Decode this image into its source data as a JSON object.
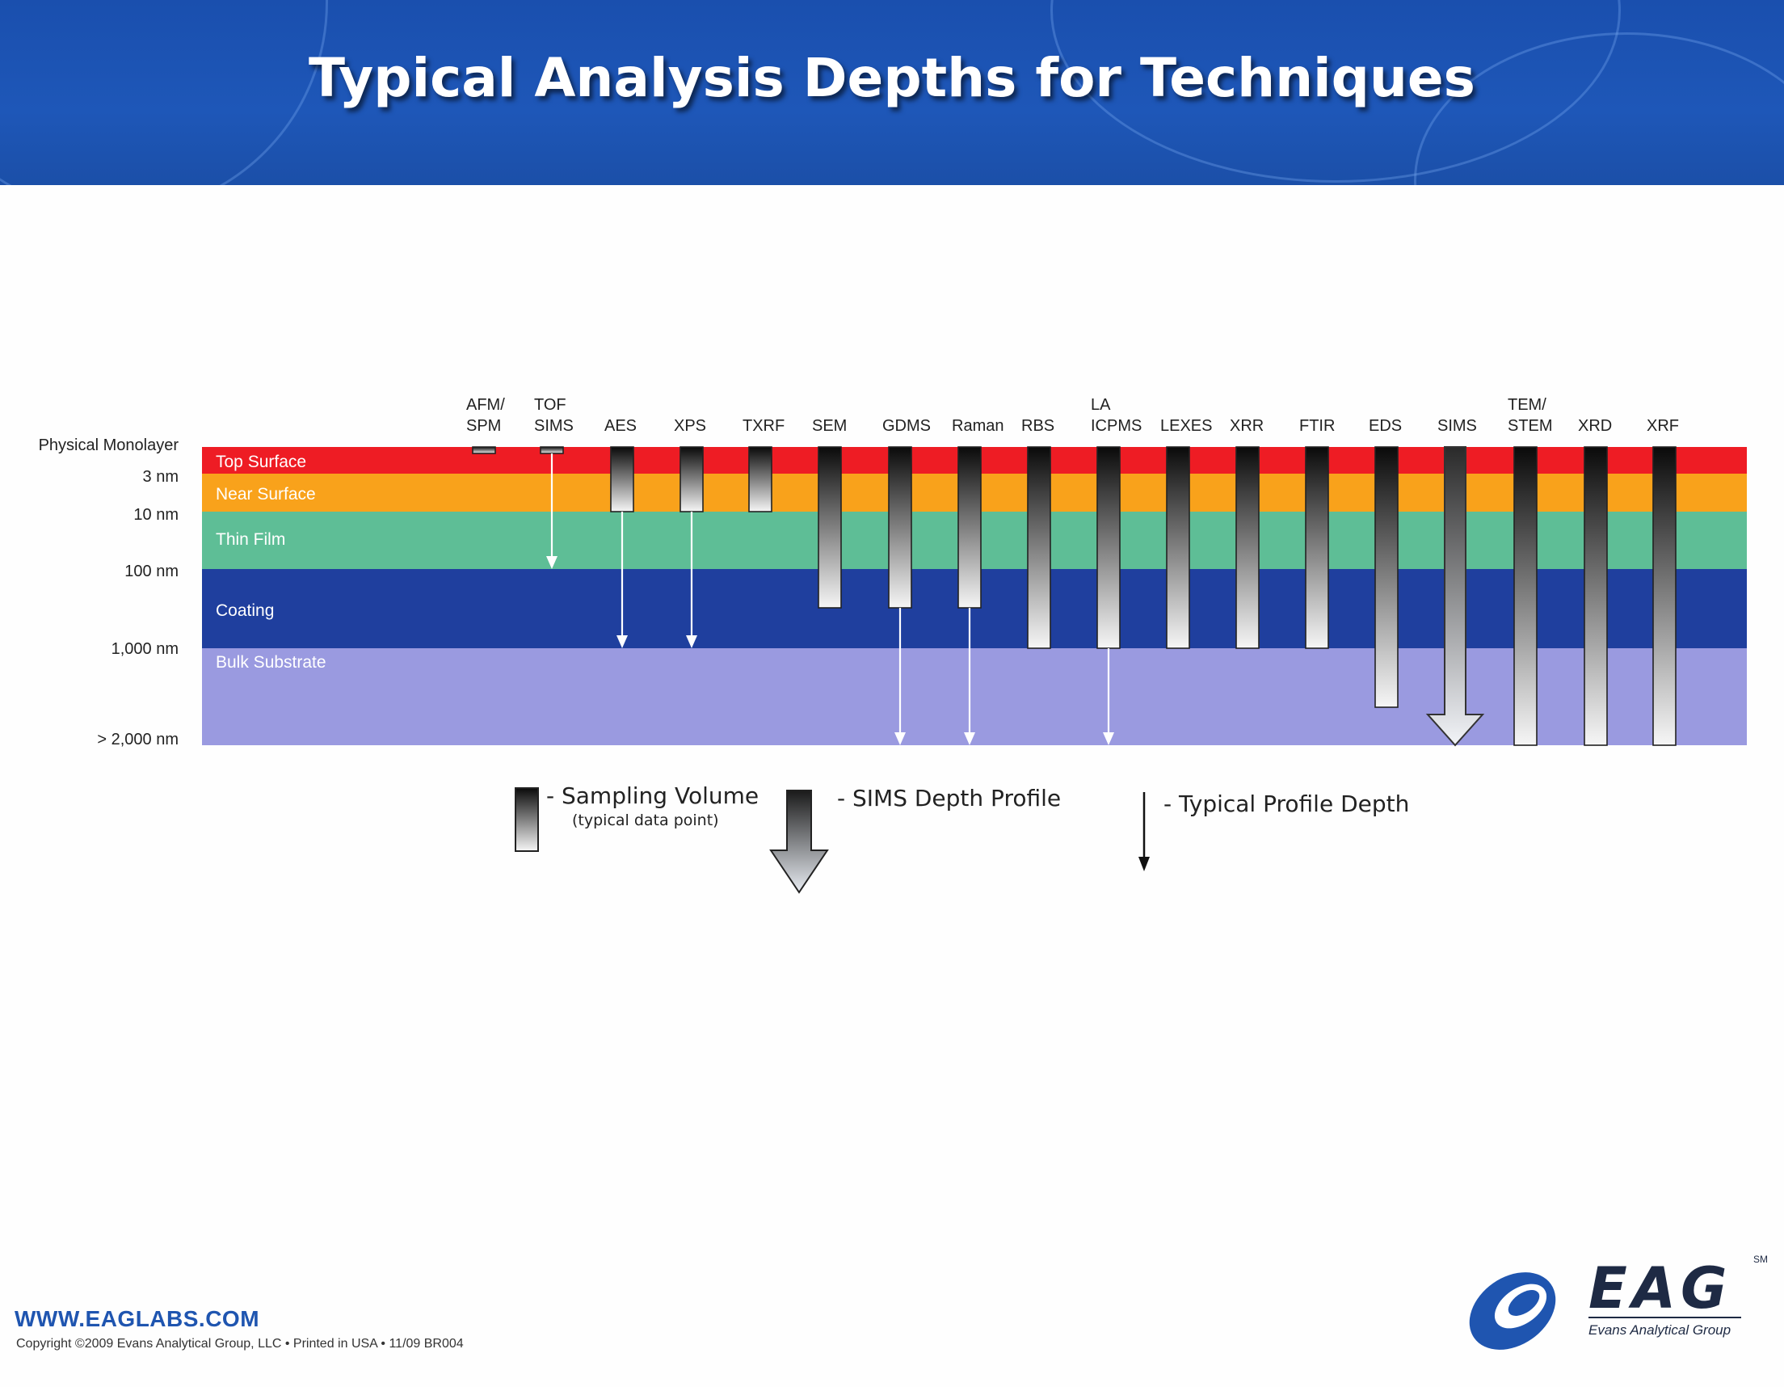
{
  "title": "Typical Analysis Depths for Techniques",
  "depth_labels": [
    "Physical Monolayer",
    "3 nm",
    "10 nm",
    "100 nm",
    "1,000 nm",
    "> 2,000 nm"
  ],
  "layers": [
    {
      "name": "Top Surface",
      "color": "#ee1c24"
    },
    {
      "name": "Near Surface",
      "color": "#f9a21b"
    },
    {
      "name": "Thin Film",
      "color": "#5ebe96"
    },
    {
      "name": "Coating",
      "color": "#1f3f9e"
    },
    {
      "name": "Bulk Substrate",
      "color": "#9a9ae0"
    }
  ],
  "techniques": [
    {
      "id": "afm",
      "label": [
        "AFM/",
        "SPM"
      ],
      "sampling_depth": "Physical Monolayer",
      "profile_depth": null,
      "sims_arrow": false
    },
    {
      "id": "tofsims",
      "label": [
        "TOF",
        "SIMS"
      ],
      "sampling_depth": "Physical Monolayer",
      "profile_depth": "100 nm",
      "sims_arrow": false
    },
    {
      "id": "aes",
      "label": [
        "",
        "AES"
      ],
      "sampling_depth": "10 nm",
      "profile_depth": "1,000 nm",
      "sims_arrow": false
    },
    {
      "id": "xps",
      "label": [
        "",
        "XPS"
      ],
      "sampling_depth": "10 nm",
      "profile_depth": "1,000 nm",
      "sims_arrow": false
    },
    {
      "id": "txrf",
      "label": [
        "",
        "TXRF"
      ],
      "sampling_depth": "10 nm",
      "profile_depth": null,
      "sims_arrow": false
    },
    {
      "id": "sem",
      "label": [
        "",
        "SEM"
      ],
      "sampling_depth": "Coating",
      "profile_depth": null,
      "sims_arrow": false
    },
    {
      "id": "gdms",
      "label": [
        "",
        "GDMS"
      ],
      "sampling_depth": "Coating",
      "profile_depth": "> 2,000 nm",
      "sims_arrow": false
    },
    {
      "id": "raman",
      "label": [
        "",
        "Raman"
      ],
      "sampling_depth": "Coating",
      "profile_depth": "> 2,000 nm",
      "sims_arrow": false
    },
    {
      "id": "rbs",
      "label": [
        "",
        "RBS"
      ],
      "sampling_depth": "1,000 nm",
      "profile_depth": null,
      "sims_arrow": false
    },
    {
      "id": "laicpms",
      "label": [
        "LA",
        "ICPMS"
      ],
      "sampling_depth": "1,000 nm",
      "profile_depth": "> 2,000 nm",
      "sims_arrow": false
    },
    {
      "id": "lexes",
      "label": [
        "",
        "LEXES"
      ],
      "sampling_depth": "1,000 nm",
      "profile_depth": null,
      "sims_arrow": false
    },
    {
      "id": "xrr",
      "label": [
        "",
        "XRR"
      ],
      "sampling_depth": "1,000 nm",
      "profile_depth": null,
      "sims_arrow": false
    },
    {
      "id": "ftir",
      "label": [
        "",
        "FTIR"
      ],
      "sampling_depth": "1,000 nm",
      "profile_depth": null,
      "sims_arrow": false
    },
    {
      "id": "eds",
      "label": [
        "",
        "EDS"
      ],
      "sampling_depth": "Bulk Substrate",
      "profile_depth": null,
      "sims_arrow": false
    },
    {
      "id": "sims",
      "label": [
        "",
        "SIMS"
      ],
      "sampling_depth": "> 2,000 nm",
      "profile_depth": null,
      "sims_arrow": true
    },
    {
      "id": "temstem",
      "label": [
        "TEM/",
        "STEM"
      ],
      "sampling_depth": "> 2,000 nm",
      "profile_depth": null,
      "sims_arrow": false
    },
    {
      "id": "xrd",
      "label": [
        "",
        "XRD"
      ],
      "sampling_depth": "> 2,000 nm",
      "profile_depth": null,
      "sims_arrow": false
    },
    {
      "id": "xrf",
      "label": [
        "",
        "XRF"
      ],
      "sampling_depth": "> 2,000 nm",
      "profile_depth": null,
      "sims_arrow": false
    }
  ],
  "legend": {
    "sampling_volume": "- Sampling Volume",
    "sampling_volume_sub": "(typical data point)",
    "sims_depth_profile": "- SIMS Depth Profile",
    "typical_profile_depth": "- Typical Profile Depth"
  },
  "footer": {
    "website": "WWW.EAGLABS.COM",
    "copyright": "Copyright ©2009 Evans Analytical Group, LLC • Printed in USA • 11/09 BR004"
  },
  "logo": {
    "text": "EAG",
    "tagline": "Evans Analytical Group",
    "mark": "SM"
  }
}
